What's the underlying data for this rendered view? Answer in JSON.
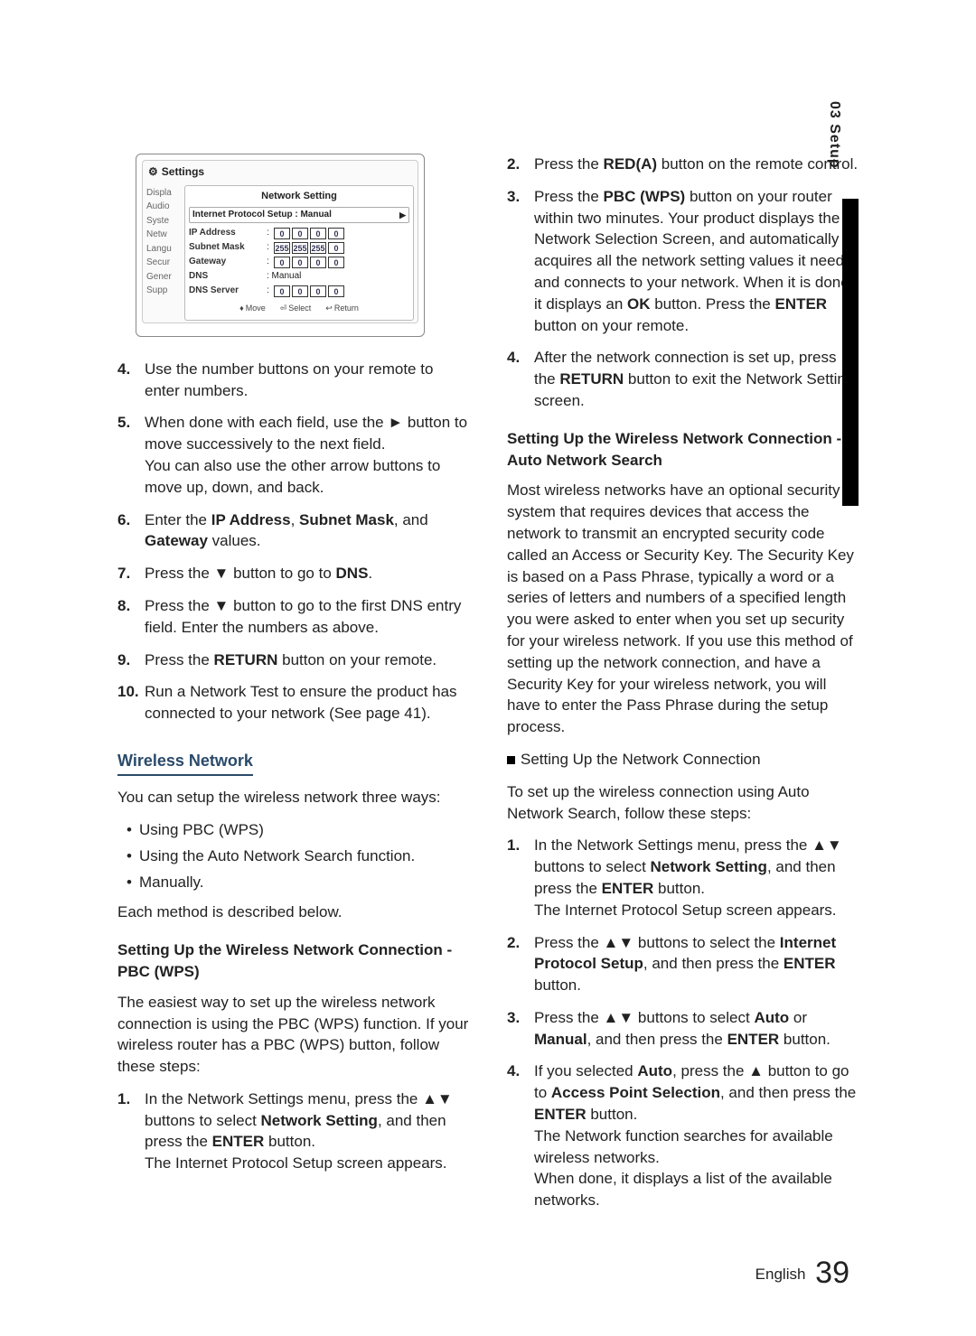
{
  "side_tab": "03  Setup",
  "settings_panel": {
    "header": "Settings",
    "sidebar_items": [
      "Displa",
      "Audio",
      "Syste",
      "Netw",
      "Langu",
      "Secur",
      "Gener",
      "Supp"
    ],
    "title": "Network Setting",
    "proto_label": "Internet Protocol Setup  : Manual",
    "rows": [
      {
        "label": "IP Address",
        "vals": [
          "0",
          "0",
          "0",
          "0"
        ]
      },
      {
        "label": "Subnet Mask",
        "vals": [
          "255",
          "255",
          "255",
          "0"
        ]
      },
      {
        "label": "Gateway",
        "vals": [
          "0",
          "0",
          "0",
          "0"
        ]
      },
      {
        "label": "DNS",
        "manual": ": Manual"
      },
      {
        "label": "DNS Server",
        "vals": [
          "0",
          "0",
          "0",
          "0"
        ]
      }
    ],
    "footer": {
      "move": "Move",
      "select": "Select",
      "return": "Return"
    }
  },
  "left": {
    "s4": "Use the number buttons on your remote to enter numbers.",
    "s5a": "When done with each field, use the ► button to move successively to the next field.",
    "s5b": "You can also use the other arrow buttons to move up, down, and back.",
    "s6a": "Enter the ",
    "s6b": "IP Address",
    "s6c": ", ",
    "s6d": "Subnet Mask",
    "s6e": ", and ",
    "s6f": "Gateway",
    "s6g": " values.",
    "s7a": "Press the ▼ button to go to ",
    "s7b": "DNS",
    "s7c": ".",
    "s8": "Press the ▼ button to go to the first DNS entry field. Enter the numbers as above.",
    "s9a": "Press the ",
    "s9b": "RETURN",
    "s9c": " button on your remote.",
    "s10": "Run a Network Test to ensure the product has connected to your network (See page 41).",
    "wireless_h": "Wireless Network",
    "wireless_intro": "You can setup the wireless network three ways:",
    "wb1": "Using PBC (WPS)",
    "wb2": "Using the Auto Network Search function.",
    "wb3": "Manually.",
    "wireless_each": "Each method is described below.",
    "pbc_h": "Setting Up the Wireless Network Connection - PBC (WPS)",
    "pbc_intro": "The easiest way to set up the wireless network connection is using the PBC (WPS) function. If your wireless router has a PBC (WPS) button, follow these steps:",
    "p1a": "In the Network Settings menu, press the ▲▼ buttons to select ",
    "p1b": "Network Setting",
    "p1c": ", and then press the ",
    "p1d": "ENTER",
    "p1e": " button.",
    "p1f": "The Internet Protocol Setup screen appears."
  },
  "right": {
    "r2a": "Press the ",
    "r2b": "RED(A)",
    "r2c": " button on the remote control.",
    "r3a": "Press the ",
    "r3b": "PBC (WPS)",
    "r3c": " button on your router within two minutes. Your product displays the Network Selection Screen, and automatically acquires all the network setting values it needs and connects to your network. When it is done, it displays an ",
    "r3d": "OK",
    "r3e": " button. Press the ",
    "r3f": "ENTER",
    "r3g": " button on your remote.",
    "r4a": "After the network connection is set up, press the ",
    "r4b": "RETURN",
    "r4c": " button to exit the Network Setting screen.",
    "auto_h": "Setting Up the Wireless Network Connection - Auto Network Search",
    "auto_body": "Most wireless networks have an optional security system that requires devices that access the network to transmit an encrypted security code called an Access or Security Key. The Security Key is based on a Pass Phrase, typically a word or a series of letters and numbers of a specified length you were asked to enter when you set up security for your wireless network. If you use this method of setting up the network connection, and have a Security Key for your wireless network, you will have to enter the Pass Phrase during the setup process.",
    "sq_sub": "Setting Up the Network Connection",
    "auto_intro": "To set up the wireless connection using Auto Network Search, follow these steps:",
    "a1a": "In the Network Settings menu, press the ▲▼ buttons to select ",
    "a1b": "Network Setting",
    "a1c": ", and then press the ",
    "a1d": "ENTER",
    "a1e": " button.",
    "a1f": "The Internet Protocol Setup screen appears.",
    "a2a": "Press the ▲▼ buttons to select the ",
    "a2b": "Internet Protocol Setup",
    "a2c": ", and then press the ",
    "a2d": "ENTER",
    "a2e": " button.",
    "a3a": "Press the ▲▼ buttons to select ",
    "a3b": "Auto",
    "a3c": " or ",
    "a3d": "Manual",
    "a3e": ", and then press the ",
    "a3f": "ENTER",
    "a3g": " button.",
    "a4a": "If you selected ",
    "a4b": "Auto",
    "a4c": ", press the ▲ button to go to ",
    "a4d": "Access Point Selection",
    "a4e": ", and then press the ",
    "a4f": "ENTER",
    "a4g": " button.",
    "a4h": "The Network function searches for available wireless networks.",
    "a4i": "When done, it displays a list of the available networks."
  },
  "footer": {
    "lang": "English",
    "page": "39"
  }
}
